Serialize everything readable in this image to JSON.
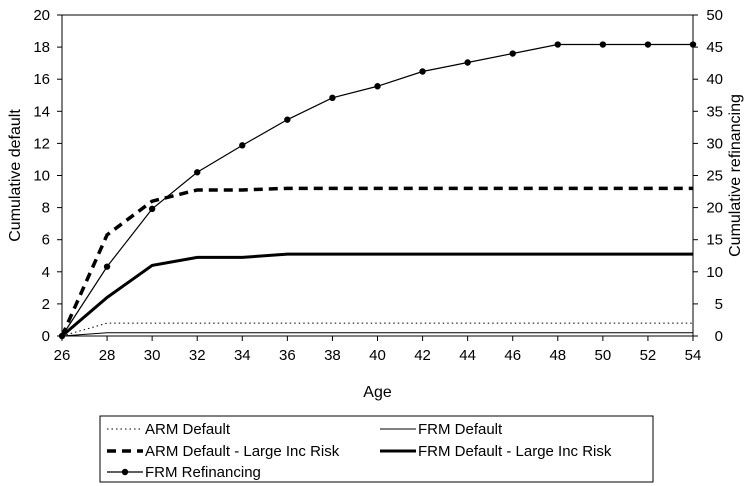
{
  "chart_data": {
    "type": "line",
    "xlabel": "Age",
    "ylabel_left": "Cumulative default",
    "ylabel_right": "Cumulative refinancing",
    "x": [
      26,
      28,
      30,
      32,
      34,
      36,
      38,
      40,
      42,
      44,
      46,
      48,
      50,
      52,
      54
    ],
    "xlim": [
      26,
      54
    ],
    "ylim_left": [
      0,
      20
    ],
    "ylim_right": [
      0,
      50
    ],
    "yticks_left": [
      0,
      2,
      4,
      6,
      8,
      10,
      12,
      14,
      16,
      18,
      20
    ],
    "yticks_right": [
      0,
      5,
      10,
      15,
      20,
      25,
      30,
      35,
      40,
      45,
      50
    ],
    "grid": false,
    "legend_position": "bottom",
    "series": [
      {
        "name": "ARM Default",
        "axis": "left",
        "style": "dotted",
        "values": [
          0,
          0.8,
          0.8,
          0.8,
          0.8,
          0.8,
          0.8,
          0.8,
          0.8,
          0.8,
          0.8,
          0.8,
          0.8,
          0.8,
          0.8
        ]
      },
      {
        "name": "FRM Default",
        "axis": "left",
        "style": "thin",
        "values": [
          0,
          0.2,
          0.2,
          0.2,
          0.2,
          0.2,
          0.2,
          0.2,
          0.2,
          0.2,
          0.2,
          0.2,
          0.2,
          0.2,
          0.2
        ]
      },
      {
        "name": "ARM Default - Large Inc Risk",
        "axis": "left",
        "style": "dashed",
        "values": [
          0,
          6.3,
          8.4,
          9.1,
          9.1,
          9.2,
          9.2,
          9.2,
          9.2,
          9.2,
          9.2,
          9.2,
          9.2,
          9.2,
          9.2
        ]
      },
      {
        "name": "FRM Default - Large Inc Risk",
        "axis": "left",
        "style": "thick",
        "values": [
          0,
          2.4,
          4.4,
          4.9,
          4.9,
          5.1,
          5.1,
          5.1,
          5.1,
          5.1,
          5.1,
          5.1,
          5.1,
          5.1,
          5.1
        ]
      },
      {
        "name": "FRM Refinancing",
        "axis": "right",
        "style": "marker",
        "values": [
          0,
          10.8,
          19.8,
          25.5,
          29.7,
          33.7,
          37.1,
          38.9,
          41.2,
          42.6,
          44.0,
          45.4,
          45.4,
          45.4,
          45.4
        ]
      }
    ]
  },
  "colors": {
    "line": "#000000",
    "background": "#ffffff"
  }
}
